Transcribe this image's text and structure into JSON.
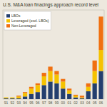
{
  "chart_data": {
    "type": "bar",
    "stacked": true,
    "title": "U.S. M&A loan finacings approach record level",
    "categories": [
      "91",
      "92",
      "93",
      "94",
      "95",
      "96",
      "97",
      "98",
      "99",
      "00",
      "01",
      "02",
      "03",
      "04",
      "05",
      "06"
    ],
    "series": [
      {
        "name": "LBOs",
        "color": "#243f6e",
        "values": [
          1,
          1,
          1,
          3,
          6,
          8,
          16,
          20,
          18,
          12,
          6,
          2,
          1,
          9,
          18,
          32
        ]
      },
      {
        "name": "Leveraged (excl. LBOs)",
        "color": "#f5c200",
        "values": [
          1,
          1,
          2,
          4,
          6,
          8,
          10,
          12,
          10,
          8,
          4,
          2,
          1,
          5,
          14,
          24
        ]
      },
      {
        "name": "Non-Leveraged",
        "color": "#f07010",
        "values": [
          0,
          0,
          1,
          1,
          2,
          2,
          4,
          5,
          4,
          3,
          2,
          1,
          2,
          4,
          12,
          38
        ]
      }
    ],
    "ylim": [
      0,
      101.52
    ],
    "yticks": [],
    "grid": false,
    "tick_labels": "x",
    "legend": "upper left"
  }
}
